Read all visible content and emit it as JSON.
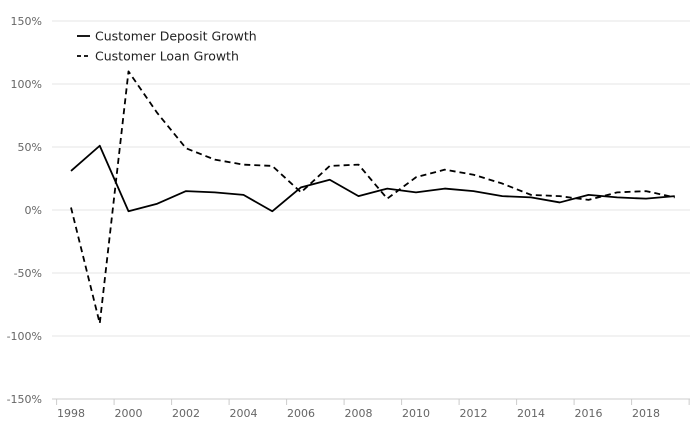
{
  "chart_data": {
    "type": "line",
    "title": "",
    "xlabel": "",
    "ylabel": "",
    "y_unit": "%",
    "ylim": [
      -150,
      150
    ],
    "y_ticks": [
      150,
      100,
      50,
      0,
      -50,
      -100,
      -150
    ],
    "y_tick_labels": [
      "150%",
      "100%",
      "50%",
      "0%",
      "-50%",
      "-100%",
      "-150%"
    ],
    "xlim": [
      1998,
      2019.5
    ],
    "x_ticks": [
      1998,
      2000,
      2002,
      2004,
      2006,
      2008,
      2010,
      2012,
      2014,
      2016,
      2018
    ],
    "x_tick_labels": [
      "1998",
      "2000",
      "2002",
      "2004",
      "2006",
      "2008",
      "2010",
      "2012",
      "2014",
      "2016",
      "2018"
    ],
    "grid": true,
    "legend_position": "top-left",
    "x": [
      1998,
      1999,
      2000,
      2001,
      2002,
      2003,
      2004,
      2005,
      2006,
      2007,
      2008,
      2009,
      2010,
      2011,
      2012,
      2013,
      2014,
      2015,
      2016,
      2017,
      2018,
      2019
    ],
    "series": [
      {
        "name": "Customer Deposit Growth",
        "style": "solid",
        "color": "#000000",
        "values": [
          31,
          51,
          -1,
          5,
          15,
          14,
          12,
          -1,
          18,
          24,
          11,
          17,
          14,
          17,
          15,
          11,
          10,
          6,
          12,
          10,
          9,
          11
        ]
      },
      {
        "name": "Customer Loan Growth",
        "style": "dashed",
        "color": "#000000",
        "values": [
          2,
          -90,
          110,
          77,
          49,
          40,
          36,
          35,
          14,
          35,
          36,
          9,
          26,
          32,
          28,
          21,
          12,
          11,
          8,
          14,
          15,
          10
        ]
      }
    ]
  }
}
